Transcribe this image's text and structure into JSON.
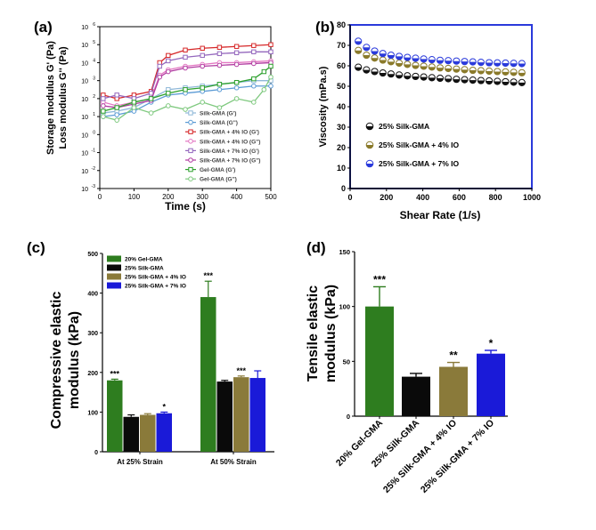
{
  "chart_data": [
    {
      "id": "a",
      "panel_label": "(a)",
      "type": "line",
      "xlabel": "Time (s)",
      "ylabel_line1": "Storage modulus G' (Pa)",
      "ylabel_line2": "Loss modulus G'' (Pa)",
      "xlim": [
        0,
        500
      ],
      "xticks": [
        "0",
        "100",
        "200",
        "300",
        "400",
        "500"
      ],
      "y_scale": "log",
      "ylim_exp": [
        -3,
        6
      ],
      "ytick_base": "10",
      "series": [
        {
          "name": "Silk-GMA (G')",
          "color": "#8fb8d8",
          "marker": "square-open",
          "x": [
            10,
            50,
            100,
            150,
            200,
            250,
            300,
            350,
            400,
            450,
            500
          ],
          "y_log": [
            1.2,
            1.3,
            1.5,
            2.0,
            2.5,
            2.6,
            2.7,
            2.8,
            2.9,
            3.0,
            3.0
          ]
        },
        {
          "name": "Silk-GMA (G'')",
          "color": "#5b9bd5",
          "marker": "circle-open",
          "x": [
            10,
            50,
            100,
            150,
            200,
            250,
            300,
            350,
            400,
            450,
            500
          ],
          "y_log": [
            1.0,
            1.1,
            1.3,
            1.8,
            2.2,
            2.3,
            2.4,
            2.5,
            2.6,
            2.7,
            2.7
          ]
        },
        {
          "name": "Silk-GMA + 4% IO (G')",
          "color": "#d62728",
          "marker": "square-open",
          "x": [
            10,
            50,
            100,
            150,
            175,
            200,
            250,
            300,
            350,
            400,
            450,
            500
          ],
          "y_log": [
            2.2,
            2.0,
            2.2,
            2.4,
            4.0,
            4.4,
            4.7,
            4.8,
            4.85,
            4.9,
            4.95,
            5.0
          ]
        },
        {
          "name": "Silk-GMA + 4% IO (G'')",
          "color": "#e377c2",
          "marker": "circle-open",
          "x": [
            10,
            50,
            100,
            150,
            175,
            200,
            250,
            300,
            350,
            400,
            450,
            500
          ],
          "y_log": [
            1.8,
            1.6,
            1.8,
            2.0,
            3.3,
            3.6,
            3.8,
            3.9,
            4.0,
            4.0,
            4.05,
            4.1
          ]
        },
        {
          "name": "Silk-GMA + 7% IO (G')",
          "color": "#9467bd",
          "marker": "square-open",
          "x": [
            10,
            50,
            100,
            150,
            175,
            200,
            250,
            300,
            350,
            400,
            450,
            500
          ],
          "y_log": [
            2.0,
            2.2,
            2.0,
            2.3,
            3.8,
            4.1,
            4.3,
            4.4,
            4.5,
            4.55,
            4.6,
            4.6
          ]
        },
        {
          "name": "Silk-GMA + 7% IO (G'')",
          "color": "#b03aa0",
          "marker": "circle-open",
          "x": [
            10,
            50,
            100,
            150,
            175,
            200,
            250,
            300,
            350,
            400,
            450,
            500
          ],
          "y_log": [
            1.6,
            1.5,
            1.7,
            1.9,
            3.2,
            3.5,
            3.7,
            3.8,
            3.85,
            3.9,
            3.95,
            4.0
          ]
        },
        {
          "name": "Gel-GMA (G')",
          "color": "#2ca02c",
          "marker": "square-open",
          "x": [
            10,
            50,
            100,
            150,
            200,
            250,
            300,
            350,
            400,
            450,
            480,
            500
          ],
          "y_log": [
            1.3,
            1.5,
            1.8,
            2.0,
            2.3,
            2.5,
            2.6,
            2.8,
            2.9,
            3.1,
            3.5,
            3.8
          ]
        },
        {
          "name": "Gel-GMA (G'')",
          "color": "#7fc97f",
          "marker": "circle-open",
          "x": [
            10,
            50,
            100,
            150,
            200,
            250,
            300,
            350,
            400,
            450,
            480,
            500
          ],
          "y_log": [
            1.0,
            0.8,
            1.5,
            1.2,
            1.6,
            1.4,
            1.8,
            1.5,
            2.0,
            1.8,
            2.5,
            3.2
          ]
        }
      ]
    },
    {
      "id": "b",
      "panel_label": "(b)",
      "type": "line",
      "xlabel": "Shear Rate (1/s)",
      "ylabel": "Viscosity (mPa.s)",
      "xlim": [
        0,
        1000
      ],
      "ylim": [
        0,
        80
      ],
      "xticks": [
        "0",
        "200",
        "400",
        "600",
        "800",
        "1000"
      ],
      "yticks": [
        "0",
        "10",
        "20",
        "30",
        "40",
        "50",
        "60",
        "70",
        "80"
      ],
      "x": [
        45,
        90,
        135,
        180,
        225,
        270,
        315,
        360,
        405,
        450,
        495,
        540,
        585,
        630,
        675,
        720,
        765,
        810,
        855,
        900,
        945
      ],
      "series": [
        {
          "name": "25% Silk-GMA",
          "color": "#111111",
          "values": [
            59.3,
            58.0,
            57.2,
            56.5,
            56.0,
            55.5,
            55.1,
            54.8,
            54.5,
            54.2,
            53.9,
            53.7,
            53.4,
            53.2,
            53.0,
            52.8,
            52.6,
            52.4,
            52.2,
            52.0,
            51.8
          ]
        },
        {
          "name": "25% Silk-GMA + 4% IO",
          "color": "#8a7a2a",
          "values": [
            67.5,
            65.2,
            63.8,
            62.8,
            62.0,
            61.3,
            60.7,
            60.2,
            59.8,
            59.4,
            59.0,
            58.7,
            58.4,
            58.1,
            57.8,
            57.6,
            57.4,
            57.2,
            57.0,
            56.8,
            56.6
          ]
        },
        {
          "name": "25% Silk-GMA + 7% IO",
          "color": "#2a3adb",
          "values": [
            72.0,
            69.0,
            67.2,
            66.0,
            65.2,
            64.6,
            64.1,
            63.7,
            63.3,
            63.0,
            62.7,
            62.5,
            62.3,
            62.1,
            61.9,
            61.7,
            61.5,
            61.4,
            61.3,
            61.2,
            61.1
          ]
        }
      ]
    },
    {
      "id": "c",
      "panel_label": "(c)",
      "type": "bar",
      "ylabel_line1": "Compressive elastic",
      "ylabel_line2": "modulus (kPa)",
      "ylim": [
        0,
        500
      ],
      "yticks": [
        "0",
        "100",
        "200",
        "300",
        "400",
        "500"
      ],
      "categories": [
        "At 25% Strain",
        "At 50% Strain"
      ],
      "series": [
        {
          "name": "20% Gel-GMA",
          "color": "#2e7d1f",
          "values": [
            180,
            390
          ],
          "errors": [
            3,
            40
          ],
          "sig": [
            "***",
            "***"
          ]
        },
        {
          "name": "25% Silk-GMA",
          "color": "#0a0a0a",
          "values": [
            88,
            177
          ],
          "errors": [
            5,
            3
          ],
          "sig": [
            "",
            ""
          ]
        },
        {
          "name": "25% Silk-GMA + 4% IO",
          "color": "#8a7a3a",
          "values": [
            93,
            188
          ],
          "errors": [
            3,
            3
          ],
          "sig": [
            "",
            "***"
          ]
        },
        {
          "name": "25% Silk-GMA + 7% IO",
          "color": "#1a1ad8",
          "values": [
            97,
            186
          ],
          "errors": [
            3,
            18
          ],
          "sig": [
            "*",
            ""
          ]
        }
      ]
    },
    {
      "id": "d",
      "panel_label": "(d)",
      "type": "bar",
      "ylabel_line1": "Tensile elastic",
      "ylabel_line2": "modulus (kPa)",
      "ylim": [
        0,
        150
      ],
      "yticks": [
        "0",
        "50",
        "100",
        "150"
      ],
      "categories": [
        "20% Gel-GMA",
        "25% Silk-GMA",
        "25% Silk-GMA + 4% IO",
        "25% Silk-GMA + 7% IO"
      ],
      "values": [
        100,
        36,
        45,
        57
      ],
      "errors": [
        18,
        3,
        4,
        3
      ],
      "colors": [
        "#2e7d1f",
        "#0a0a0a",
        "#8a7a3a",
        "#1a1ad8"
      ],
      "sig": [
        "***",
        "",
        "**",
        "*"
      ]
    }
  ]
}
